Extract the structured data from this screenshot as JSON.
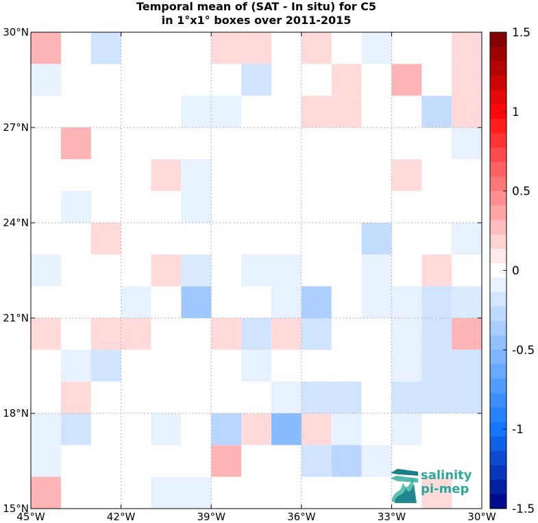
{
  "chart_data": {
    "type": "heatmap",
    "title_lines": [
      "Temporal mean of (SAT - In situ) for C5",
      "in 1°x1° boxes over 2011-2015"
    ],
    "x_range": [
      -45,
      -30
    ],
    "y_range": [
      15,
      30
    ],
    "x_ticks": [
      -45,
      -42,
      -39,
      -36,
      -33,
      -30
    ],
    "x_tick_labels": [
      "45°W",
      "42°W",
      "39°W",
      "36°W",
      "33°W",
      "30°W"
    ],
    "y_ticks": [
      15,
      18,
      21,
      24,
      27,
      30
    ],
    "y_tick_labels": [
      "15°N",
      "18°N",
      "21°N",
      "24°N",
      "27°N",
      "30°N"
    ],
    "grid": true,
    "colorbar": {
      "range": [
        -1.5,
        1.5
      ],
      "ticks": [
        -1.5,
        -1,
        -0.5,
        0,
        0.5,
        1,
        1.5
      ],
      "tick_labels": [
        "-1.5",
        "-1",
        "-0.5",
        "0",
        "0.5",
        "1",
        "1.5"
      ]
    },
    "cells": [
      {
        "lon": -45,
        "lat": 29,
        "v": 0.3
      },
      {
        "lon": -43,
        "lat": 29,
        "v": -0.2
      },
      {
        "lon": -39,
        "lat": 29,
        "v": 0.15
      },
      {
        "lon": -38,
        "lat": 29,
        "v": 0.15
      },
      {
        "lon": -36,
        "lat": 29,
        "v": 0.15
      },
      {
        "lon": -34,
        "lat": 29,
        "v": -0.1
      },
      {
        "lon": -31,
        "lat": 29,
        "v": 0.15
      },
      {
        "lon": -45,
        "lat": 28,
        "v": -0.1
      },
      {
        "lon": -38,
        "lat": 28,
        "v": -0.2
      },
      {
        "lon": -35,
        "lat": 28,
        "v": 0.15
      },
      {
        "lon": -33,
        "lat": 28,
        "v": 0.3
      },
      {
        "lon": -31,
        "lat": 28,
        "v": 0.15
      },
      {
        "lon": -40,
        "lat": 27,
        "v": -0.1
      },
      {
        "lon": -39,
        "lat": 27,
        "v": -0.1
      },
      {
        "lon": -36,
        "lat": 27,
        "v": 0.15
      },
      {
        "lon": -35,
        "lat": 27,
        "v": 0.15
      },
      {
        "lon": -32,
        "lat": 27,
        "v": -0.25
      },
      {
        "lon": -31,
        "lat": 27,
        "v": 0.15
      },
      {
        "lon": -44,
        "lat": 26,
        "v": 0.3
      },
      {
        "lon": -31,
        "lat": 26,
        "v": -0.1
      },
      {
        "lon": -41,
        "lat": 25,
        "v": 0.15
      },
      {
        "lon": -40,
        "lat": 25,
        "v": -0.1
      },
      {
        "lon": -33,
        "lat": 25,
        "v": 0.15
      },
      {
        "lon": -44,
        "lat": 24,
        "v": -0.1
      },
      {
        "lon": -40,
        "lat": 24,
        "v": -0.1
      },
      {
        "lon": -43,
        "lat": 23,
        "v": 0.15
      },
      {
        "lon": -34,
        "lat": 23,
        "v": -0.25
      },
      {
        "lon": -31,
        "lat": 23,
        "v": -0.1
      },
      {
        "lon": -45,
        "lat": 22,
        "v": -0.1
      },
      {
        "lon": -41,
        "lat": 22,
        "v": 0.15
      },
      {
        "lon": -40,
        "lat": 22,
        "v": -0.15
      },
      {
        "lon": -38,
        "lat": 22,
        "v": -0.1
      },
      {
        "lon": -37,
        "lat": 22,
        "v": -0.1
      },
      {
        "lon": -34,
        "lat": 22,
        "v": -0.1
      },
      {
        "lon": -32,
        "lat": 22,
        "v": 0.15
      },
      {
        "lon": -42,
        "lat": 21,
        "v": -0.1
      },
      {
        "lon": -40,
        "lat": 21,
        "v": -0.4
      },
      {
        "lon": -37,
        "lat": 21,
        "v": -0.1
      },
      {
        "lon": -36,
        "lat": 21,
        "v": -0.35
      },
      {
        "lon": -34,
        "lat": 21,
        "v": -0.1
      },
      {
        "lon": -33,
        "lat": 21,
        "v": -0.1
      },
      {
        "lon": -32,
        "lat": 21,
        "v": -0.2
      },
      {
        "lon": -31,
        "lat": 21,
        "v": -0.15
      },
      {
        "lon": -45,
        "lat": 20,
        "v": 0.15
      },
      {
        "lon": -43,
        "lat": 20,
        "v": 0.15
      },
      {
        "lon": -42,
        "lat": 20,
        "v": 0.15
      },
      {
        "lon": -39,
        "lat": 20,
        "v": 0.15
      },
      {
        "lon": -38,
        "lat": 20,
        "v": -0.2
      },
      {
        "lon": -37,
        "lat": 20,
        "v": 0.15
      },
      {
        "lon": -36,
        "lat": 20,
        "v": -0.2
      },
      {
        "lon": -33,
        "lat": 20,
        "v": -0.1
      },
      {
        "lon": -32,
        "lat": 20,
        "v": -0.2
      },
      {
        "lon": -31,
        "lat": 20,
        "v": 0.3
      },
      {
        "lon": -44,
        "lat": 19,
        "v": -0.1
      },
      {
        "lon": -43,
        "lat": 19,
        "v": -0.2
      },
      {
        "lon": -38,
        "lat": 19,
        "v": -0.1
      },
      {
        "lon": -33,
        "lat": 19,
        "v": -0.1
      },
      {
        "lon": -32,
        "lat": 19,
        "v": -0.2
      },
      {
        "lon": -31,
        "lat": 19,
        "v": -0.2
      },
      {
        "lon": -44,
        "lat": 18,
        "v": 0.15
      },
      {
        "lon": -37,
        "lat": 18,
        "v": -0.1
      },
      {
        "lon": -36,
        "lat": 18,
        "v": -0.2
      },
      {
        "lon": -35,
        "lat": 18,
        "v": -0.2
      },
      {
        "lon": -33,
        "lat": 18,
        "v": -0.2
      },
      {
        "lon": -32,
        "lat": 18,
        "v": -0.2
      },
      {
        "lon": -31,
        "lat": 18,
        "v": -0.2
      },
      {
        "lon": -45,
        "lat": 17,
        "v": -0.1
      },
      {
        "lon": -44,
        "lat": 17,
        "v": -0.2
      },
      {
        "lon": -41,
        "lat": 17,
        "v": -0.1
      },
      {
        "lon": -39,
        "lat": 17,
        "v": -0.3
      },
      {
        "lon": -38,
        "lat": 17,
        "v": 0.15
      },
      {
        "lon": -37,
        "lat": 17,
        "v": -0.5
      },
      {
        "lon": -36,
        "lat": 17,
        "v": 0.15
      },
      {
        "lon": -35,
        "lat": 17,
        "v": -0.1
      },
      {
        "lon": -33,
        "lat": 17,
        "v": -0.1
      },
      {
        "lon": -45,
        "lat": 16,
        "v": -0.1
      },
      {
        "lon": -39,
        "lat": 16,
        "v": 0.3
      },
      {
        "lon": -36,
        "lat": 16,
        "v": -0.2
      },
      {
        "lon": -35,
        "lat": 16,
        "v": -0.3
      },
      {
        "lon": -34,
        "lat": 16,
        "v": -0.1
      },
      {
        "lon": -45,
        "lat": 15,
        "v": 0.3
      },
      {
        "lon": -41,
        "lat": 15,
        "v": -0.1
      },
      {
        "lon": -40,
        "lat": 15,
        "v": -0.1
      },
      {
        "lon": -32,
        "lat": 15,
        "v": 0.15
      }
    ]
  },
  "logo": {
    "line1": "salinity",
    "line2": "pi-mep"
  },
  "colors": {
    "background": "#ffffff",
    "grid": "#b0b0b0",
    "logo_teal": "#2aa79b",
    "logo_dark": "#1b7f8a"
  }
}
